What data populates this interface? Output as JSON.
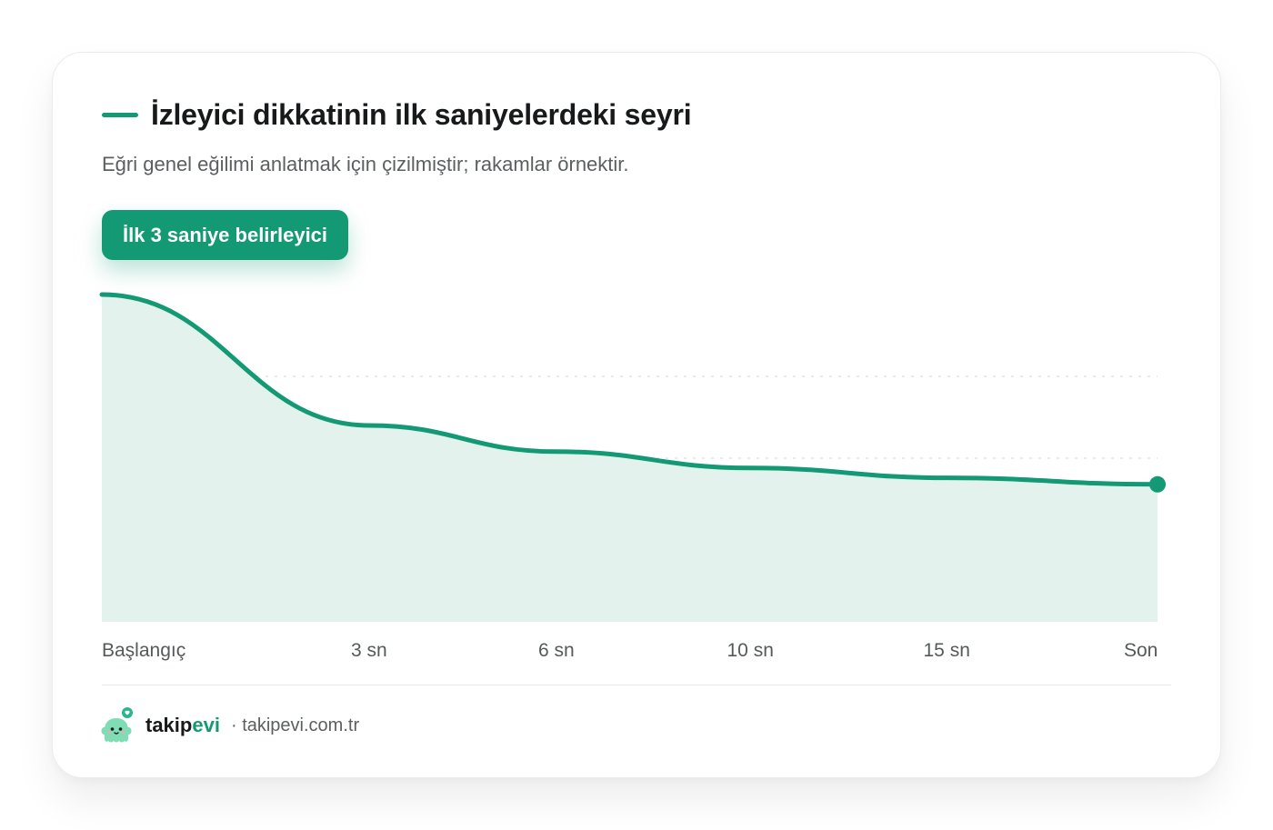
{
  "chart_data": {
    "type": "area",
    "title": "İzleyici dikkatinin ilk saniyelerdeki seyri",
    "subtitle": "Eğri genel eğilimi anlatmak için çizilmiştir; rakamlar örnektir.",
    "annotation": "İlk 3 saniye belirleyici",
    "categories": [
      "Başlangıç",
      "3 sn",
      "6 sn",
      "10 sn",
      "15 sn",
      "Son"
    ],
    "x": [
      0,
      3,
      6,
      10,
      15,
      20
    ],
    "values": [
      100,
      60,
      52,
      47,
      44,
      42
    ],
    "ylim": [
      0,
      100
    ],
    "grid": true,
    "line_color": "#139a74",
    "fill_color": "#e3f2ec"
  },
  "footer": {
    "brand_part1": "takip",
    "brand_part2": "evi",
    "separator": "·",
    "url": "takipevi.com.tr"
  }
}
